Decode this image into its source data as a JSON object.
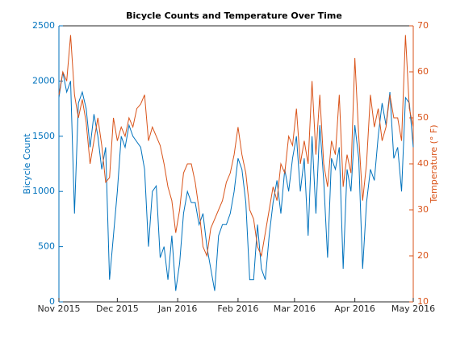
{
  "chart_data": {
    "type": "line",
    "title": "Bicycle Counts and Temperature Over Time",
    "ylabel": "Bicycle Count",
    "y2label": "Temperature (° F)",
    "x": [
      0,
      2,
      4,
      6,
      8,
      10,
      12,
      14,
      16,
      18,
      20,
      22,
      24,
      26,
      28,
      30,
      32,
      34,
      36,
      38,
      40,
      42,
      44,
      46,
      48,
      50,
      52,
      54,
      56,
      58,
      60,
      62,
      64,
      66,
      68,
      70,
      72,
      74,
      76,
      78,
      80,
      82,
      84,
      86,
      88,
      90,
      92,
      94,
      96,
      98,
      100,
      102,
      104,
      106,
      108,
      110,
      112,
      114,
      116,
      118,
      120,
      122,
      124,
      126,
      128,
      130,
      132,
      134,
      136,
      138,
      140,
      142,
      144,
      146,
      148,
      150,
      152,
      154,
      156,
      158,
      160,
      162,
      164,
      166,
      168,
      170,
      172,
      174,
      176,
      178,
      180,
      182
    ],
    "xlim": [
      0,
      182
    ],
    "xticks": [
      {
        "value": 0,
        "label": "Nov 2015"
      },
      {
        "value": 30,
        "label": "Dec 2015"
      },
      {
        "value": 61,
        "label": "Jan 2016"
      },
      {
        "value": 92,
        "label": "Feb 2016"
      },
      {
        "value": 121,
        "label": "Mar 2016"
      },
      {
        "value": 152,
        "label": "Apr 2016"
      },
      {
        "value": 182,
        "label": "May 2016"
      }
    ],
    "ylim": [
      0,
      2500
    ],
    "yticks": [
      0,
      500,
      1000,
      1500,
      2000,
      2500
    ],
    "y2lim": [
      10,
      70
    ],
    "y2ticks": [
      10,
      20,
      30,
      40,
      50,
      60,
      70
    ],
    "series": [
      {
        "name": "Bicycle Count",
        "color": "#0072bd",
        "values": [
          1850,
          2080,
          1900,
          2000,
          800,
          1800,
          1900,
          1750,
          1400,
          1700,
          1500,
          1200,
          1400,
          200,
          600,
          1000,
          1500,
          1400,
          1600,
          1500,
          1450,
          1400,
          1200,
          500,
          1000,
          1050,
          400,
          500,
          200,
          600,
          100,
          350,
          800,
          1000,
          900,
          900,
          700,
          800,
          500,
          300,
          100,
          600,
          700,
          700,
          800,
          1000,
          1300,
          1200,
          900,
          200,
          200,
          700,
          300,
          200,
          600,
          900,
          1100,
          800,
          1200,
          1000,
          1300,
          1500,
          1000,
          1300,
          600,
          1500,
          800,
          1600,
          1100,
          400,
          1300,
          1200,
          1400,
          300,
          1200,
          1000,
          1600,
          1300,
          300,
          900,
          1200,
          1100,
          1500,
          1800,
          1600,
          1900,
          1300,
          1400,
          1000,
          1850,
          1800,
          1400
        ]
      },
      {
        "name": "Temperature (° F)",
        "color": "#d95319",
        "axis": "y2",
        "values": [
          55,
          60,
          58,
          68,
          55,
          50,
          54,
          49,
          40,
          45,
          50,
          44,
          36,
          37,
          50,
          45,
          48,
          46,
          50,
          48,
          52,
          53,
          55,
          45,
          48,
          46,
          44,
          40,
          35,
          32,
          25,
          30,
          38,
          40,
          40,
          36,
          30,
          22,
          20,
          26,
          28,
          30,
          32,
          36,
          38,
          42,
          48,
          42,
          38,
          30,
          28,
          22,
          20,
          25,
          30,
          35,
          32,
          40,
          38,
          46,
          44,
          52,
          40,
          45,
          40,
          58,
          42,
          55,
          40,
          35,
          45,
          42,
          55,
          35,
          42,
          38,
          63,
          46,
          32,
          40,
          55,
          48,
          52,
          45,
          48,
          55,
          50,
          50,
          45,
          68,
          52,
          48
        ]
      }
    ]
  }
}
